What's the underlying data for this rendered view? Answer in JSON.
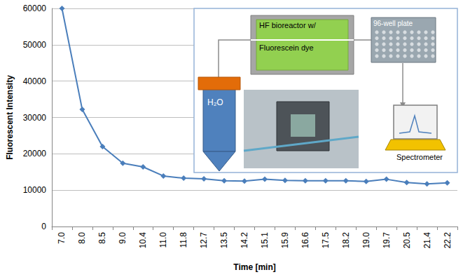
{
  "chart_data": {
    "type": "line",
    "x_label": "Time [min]",
    "y_label": "Fluorescent Intensity",
    "categories": [
      "7.0",
      "8.0",
      "8.5",
      "9.0",
      "10.4",
      "11.0",
      "11.8",
      "12.7",
      "13.5",
      "14.2",
      "15.1",
      "15.9",
      "16.6",
      "17.5",
      "18.2",
      "19.0",
      "19.7",
      "20.5",
      "21.4",
      "22.2"
    ],
    "values": [
      60000,
      32200,
      22000,
      17400,
      16400,
      13900,
      13300,
      13100,
      12600,
      12500,
      13000,
      12700,
      12600,
      12600,
      12600,
      12400,
      13000,
      12100,
      11700,
      12000
    ],
    "color": "#4a7ebb",
    "marker": "diamond",
    "ylim": [
      0,
      60000
    ],
    "yticks": [
      0,
      10000,
      20000,
      30000,
      40000,
      50000,
      60000
    ],
    "grid": true,
    "annotations": [
      "H₂O",
      "HF bioreactor w/",
      "Fluorescein dye",
      "96-well plate",
      "Spectrometer"
    ]
  }
}
